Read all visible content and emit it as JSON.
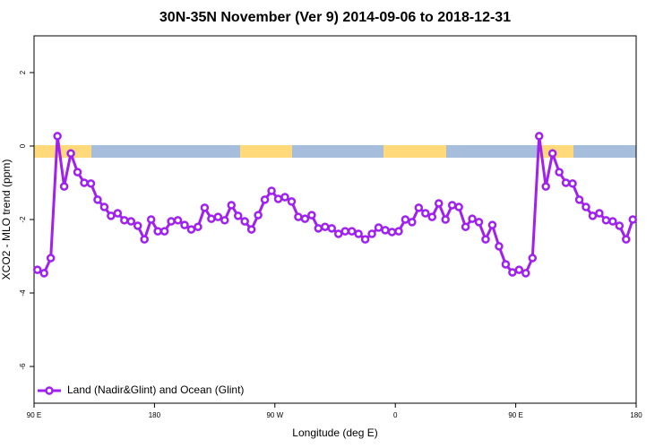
{
  "chart_data": {
    "type": "line",
    "title": "30N-35N November (Ver 9)   2014-09-06 to 2018-12-31",
    "x_label": "Longitude (deg E)",
    "y_label": "XCO2 - MLO trend (ppm)",
    "x": [
      92.5,
      97.5,
      102.5,
      107.5,
      112.5,
      117.5,
      122.5,
      127.5,
      132.5,
      137.5,
      142.5,
      147.5,
      152.5,
      157.5,
      162.5,
      167.5,
      172.5,
      177.5,
      182.5,
      187.5,
      192.5,
      197.5,
      202.5,
      207.5,
      212.5,
      217.5,
      222.5,
      227.5,
      232.5,
      237.5,
      242.5,
      247.5,
      252.5,
      257.5,
      262.5,
      267.5,
      272.5,
      277.5,
      282.5,
      287.5,
      292.5,
      297.5,
      302.5,
      307.5,
      312.5,
      317.5,
      322.5,
      327.5,
      332.5,
      337.5,
      342.5,
      347.5,
      352.5,
      357.5,
      362.5,
      367.5,
      372.5,
      377.5,
      382.5,
      387.5,
      392.5,
      397.5,
      402.5,
      407.5,
      412.5,
      417.5,
      422.5,
      427.5,
      432.5,
      437.5,
      442.5,
      447.5,
      452.5,
      457.5,
      462.5,
      467.5,
      472.5,
      477.5,
      482.5,
      487.5,
      492.5,
      497.5,
      502.5,
      507.5,
      512.5,
      517.5,
      522.5,
      527.5,
      532.5,
      537.5
    ],
    "series": [
      {
        "name": "Land (Nadir&Glint) and Ocean (Glint)",
        "color": "#a020f0",
        "values": [
          -3.37,
          -3.46,
          -3.05,
          0.27,
          -1.1,
          -0.2,
          -0.71,
          -1.0,
          -1.02,
          -1.46,
          -1.66,
          -1.9,
          -1.83,
          -2.02,
          -2.05,
          -2.17,
          -2.54,
          -2.0,
          -2.32,
          -2.32,
          -2.05,
          -2.02,
          -2.15,
          -2.27,
          -2.2,
          -1.68,
          -1.98,
          -1.93,
          -2.02,
          -1.61,
          -1.9,
          -2.05,
          -2.27,
          -1.88,
          -1.46,
          -1.22,
          -1.44,
          -1.39,
          -1.51,
          -1.93,
          -1.98,
          -1.88,
          -2.24,
          -2.2,
          -2.24,
          -2.39,
          -2.32,
          -2.32,
          -2.39,
          -2.54,
          -2.39,
          -2.22,
          -2.29,
          -2.34,
          -2.32,
          -2.0,
          -2.07,
          -1.68,
          -1.83,
          -1.93,
          -1.56,
          -2.0,
          -1.61,
          -1.66,
          -2.2,
          -1.98,
          -2.07,
          -2.54,
          -2.15,
          -2.73,
          -3.22,
          -3.44,
          -3.37,
          -3.46,
          -3.05,
          0.27,
          -1.1,
          -0.2,
          -0.71,
          -1.0,
          -1.02,
          -1.46,
          -1.66,
          -1.9,
          -1.83,
          -2.02,
          -2.05,
          -2.17,
          -2.54,
          -2.0
        ]
      }
    ],
    "xlim": [
      90,
      540
    ],
    "xticks": [
      {
        "value": 90,
        "label": "90 E"
      },
      180,
      {
        "value": 270,
        "label": "90 W"
      },
      {
        "value": 360,
        "label": "0"
      },
      {
        "value": 450,
        "label": "90 E"
      },
      {
        "value": 540,
        "label": "180"
      }
    ],
    "ylim": [
      -7,
      3
    ],
    "yticks": [
      2,
      0,
      -2,
      -4,
      -6
    ],
    "legend": "bottom-left"
  }
}
